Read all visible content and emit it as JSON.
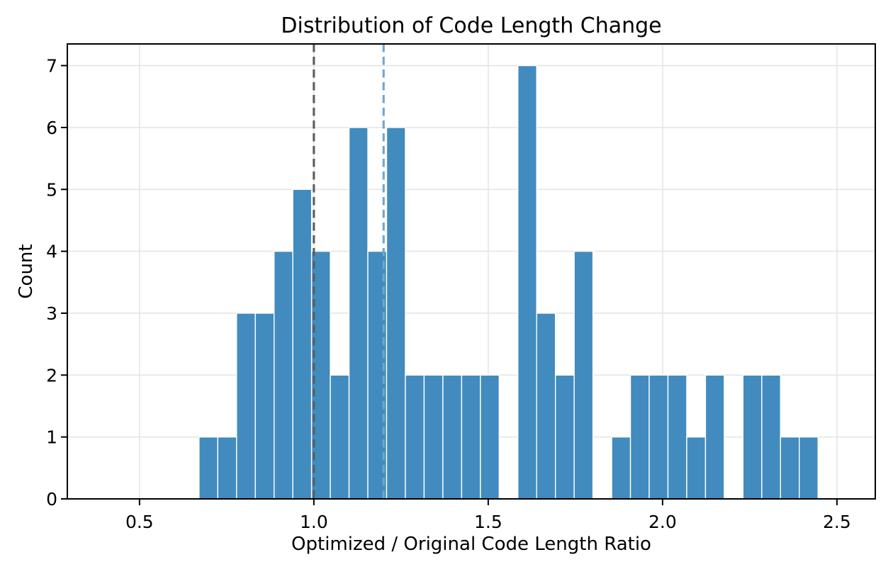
{
  "figure": {
    "title": "Distribution of Code Length Change",
    "xlabel": "Optimized / Original Code Length Ratio",
    "ylabel": "Count"
  },
  "colors": {
    "background": "#ffffff",
    "bar_fill": "#418bbf",
    "bar_edge": "#ffffff",
    "grid": "#e5e5e5",
    "axis": "#000000",
    "text": "#000000",
    "vline_gray": "#5c5c5c",
    "vline_blue": "#6ea6d2"
  },
  "chart_data": {
    "type": "bar",
    "subtype": "histogram",
    "title": "Distribution of Code Length Change",
    "xlabel": "Optimized / Original Code Length Ratio",
    "ylabel": "Count",
    "xlim": [
      0.293,
      2.61
    ],
    "ylim": [
      0,
      7.35
    ],
    "x_ticks": [
      0.5,
      1.0,
      1.5,
      2.0,
      2.5
    ],
    "x_tick_labels": [
      "0.5",
      "1.0",
      "1.5",
      "2.0",
      "2.5"
    ],
    "y_ticks": [
      0,
      1,
      2,
      3,
      4,
      5,
      6,
      7
    ],
    "y_tick_labels": [
      "0",
      "1",
      "2",
      "3",
      "4",
      "5",
      "6",
      "7"
    ],
    "grid": true,
    "legend": false,
    "bin_edges": [
      0.6707,
      0.7245,
      0.7783,
      0.8321,
      0.8859,
      0.9396,
      0.9934,
      1.0472,
      1.101,
      1.1548,
      1.2086,
      1.2624,
      1.3162,
      1.37,
      1.4238,
      1.4776,
      1.5314,
      1.5851,
      1.6389,
      1.6927,
      1.7465,
      1.8003,
      1.8541,
      1.9079,
      1.9617,
      2.0155,
      2.0693,
      2.1231,
      2.1768,
      2.2306,
      2.2844,
      2.3382,
      2.392,
      2.4458
    ],
    "counts": [
      1,
      1,
      3,
      3,
      4,
      5,
      4,
      2,
      6,
      4,
      6,
      2,
      2,
      2,
      2,
      2,
      0,
      7,
      3,
      2,
      4,
      0,
      1,
      2,
      2,
      2,
      1,
      2,
      0,
      2,
      2,
      1,
      1
    ],
    "reference_lines": [
      {
        "x": 1.0,
        "color_key": "vline_gray",
        "style": "dashed"
      },
      {
        "x": 1.2,
        "color_key": "vline_blue",
        "style": "dashed"
      }
    ]
  }
}
